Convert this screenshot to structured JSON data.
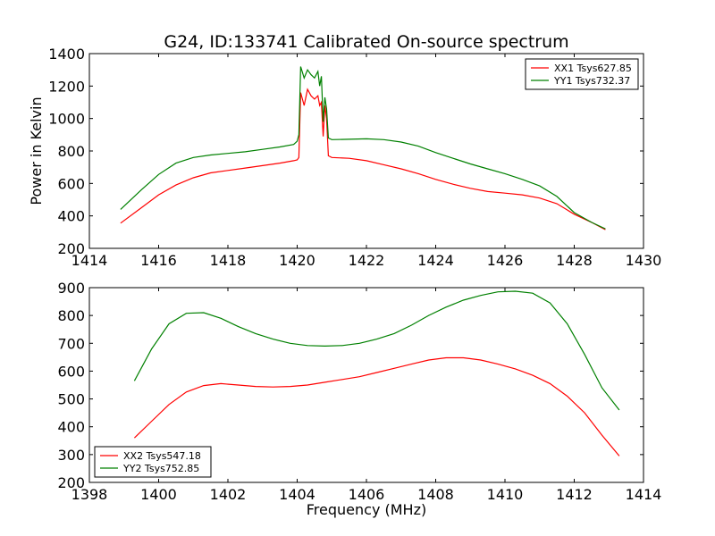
{
  "chart_data": [
    {
      "type": "line",
      "title": "G24, ID:133741 Calibrated On-source spectrum",
      "xlabel": "",
      "ylabel": "Power in Kelvin",
      "xlim": [
        1414,
        1430
      ],
      "ylim": [
        200,
        1400
      ],
      "xticks": [
        "1414",
        "1416",
        "1418",
        "1420",
        "1422",
        "1424",
        "1426",
        "1428",
        "1430"
      ],
      "yticks": [
        "200",
        "400",
        "600",
        "800",
        "1000",
        "1200",
        "1400"
      ],
      "legend_position": "top-right",
      "grid": false,
      "series": [
        {
          "name": "XX1 Tsys627.85",
          "color": "#ff0000",
          "x": [
            1414.9,
            1415.5,
            1416,
            1416.5,
            1417,
            1417.5,
            1418,
            1418.5,
            1419,
            1419.5,
            1419.9,
            1420.0,
            1420.05,
            1420.1,
            1420.2,
            1420.3,
            1420.4,
            1420.5,
            1420.6,
            1420.65,
            1420.7,
            1420.75,
            1420.8,
            1420.85,
            1420.9,
            1421,
            1421.5,
            1422,
            1422.5,
            1423,
            1423.5,
            1424,
            1424.5,
            1425,
            1425.5,
            1426,
            1426.5,
            1427,
            1427.5,
            1428,
            1428.5,
            1428.9
          ],
          "y": [
            355,
            450,
            530,
            590,
            635,
            665,
            680,
            695,
            710,
            725,
            740,
            745,
            760,
            1160,
            1080,
            1180,
            1140,
            1120,
            1140,
            1080,
            1100,
            890,
            1080,
            1000,
            770,
            760,
            755,
            740,
            715,
            690,
            660,
            625,
            595,
            570,
            550,
            540,
            530,
            510,
            475,
            410,
            360,
            315
          ]
        },
        {
          "name": "YY1 Tsys732.37",
          "color": "#008000",
          "x": [
            1414.9,
            1415.5,
            1416,
            1416.5,
            1417,
            1417.5,
            1418,
            1418.5,
            1419,
            1419.5,
            1419.9,
            1420.0,
            1420.05,
            1420.1,
            1420.2,
            1420.3,
            1420.4,
            1420.5,
            1420.6,
            1420.65,
            1420.7,
            1420.75,
            1420.8,
            1420.85,
            1420.9,
            1421,
            1421.5,
            1422,
            1422.5,
            1423,
            1423.5,
            1424,
            1424.5,
            1425,
            1425.5,
            1426,
            1426.5,
            1427,
            1427.5,
            1428,
            1428.5,
            1428.9
          ],
          "y": [
            440,
            560,
            655,
            725,
            760,
            775,
            785,
            795,
            810,
            825,
            840,
            860,
            900,
            1320,
            1250,
            1300,
            1270,
            1250,
            1290,
            1200,
            1260,
            980,
            1130,
            1060,
            880,
            870,
            872,
            875,
            870,
            855,
            830,
            790,
            755,
            720,
            690,
            660,
            625,
            585,
            520,
            420,
            360,
            320
          ]
        }
      ]
    },
    {
      "type": "line",
      "title": "",
      "xlabel": "Frequency (MHz)",
      "ylabel": "",
      "xlim": [
        1398,
        1414
      ],
      "ylim": [
        200,
        900
      ],
      "xticks": [
        "1398",
        "1400",
        "1402",
        "1404",
        "1406",
        "1408",
        "1410",
        "1412",
        "1414"
      ],
      "yticks": [
        "200",
        "300",
        "400",
        "500",
        "600",
        "700",
        "800",
        "900"
      ],
      "legend_position": "bottom-left",
      "grid": false,
      "series": [
        {
          "name": "XX2 Tsys547.18",
          "color": "#ff0000",
          "x": [
            1399.3,
            1399.8,
            1400.3,
            1400.8,
            1401.3,
            1401.8,
            1402.3,
            1402.8,
            1403.3,
            1403.8,
            1404.3,
            1404.8,
            1405.3,
            1405.8,
            1406.3,
            1406.8,
            1407.3,
            1407.8,
            1408.3,
            1408.8,
            1409.3,
            1409.8,
            1410.3,
            1410.8,
            1411.3,
            1411.8,
            1412.3,
            1412.8,
            1413.3
          ],
          "y": [
            360,
            420,
            480,
            525,
            548,
            555,
            550,
            545,
            543,
            545,
            550,
            560,
            570,
            580,
            595,
            610,
            625,
            640,
            648,
            648,
            640,
            625,
            608,
            585,
            555,
            510,
            450,
            370,
            295
          ]
        },
        {
          "name": "YY2 Tsys752.85",
          "color": "#008000",
          "x": [
            1399.3,
            1399.8,
            1400.3,
            1400.8,
            1401.3,
            1401.8,
            1402.3,
            1402.8,
            1403.3,
            1403.8,
            1404.3,
            1404.8,
            1405.3,
            1405.8,
            1406.3,
            1406.8,
            1407.3,
            1407.8,
            1408.3,
            1408.8,
            1409.3,
            1409.8,
            1410.3,
            1410.8,
            1411.3,
            1411.8,
            1412.3,
            1412.8,
            1413.3
          ],
          "y": [
            565,
            680,
            770,
            808,
            810,
            790,
            760,
            735,
            715,
            700,
            692,
            690,
            692,
            700,
            715,
            735,
            765,
            800,
            830,
            855,
            872,
            885,
            887,
            880,
            845,
            770,
            660,
            540,
            460
          ]
        }
      ]
    }
  ]
}
